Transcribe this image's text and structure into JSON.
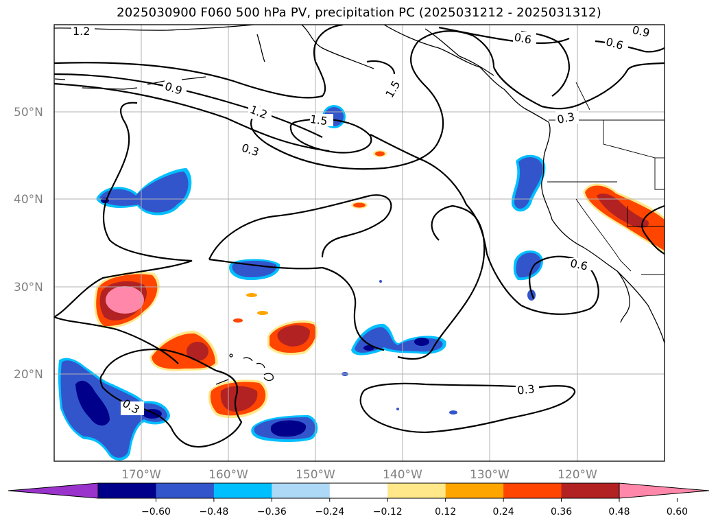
{
  "title": "2025030900 F060 500 hPa PV, precipitation PC (2025031212 - 2025031312)",
  "latitude_labels": [
    "50°N",
    "40°N",
    "30°N",
    "20°N"
  ],
  "longitude_labels": [
    "170°W",
    "160°W",
    "150°W",
    "140°W",
    "130°W",
    "120°W"
  ],
  "contour_labels": [
    "1.2",
    "0.9",
    "1.2",
    "0.3",
    "1.5",
    "1.5",
    "0.6",
    "0.9",
    "0.6",
    "0.3",
    "0.6",
    "0.3",
    "0.3"
  ],
  "colorbar": {
    "ticks": [
      "−0.60",
      "−0.48",
      "−0.36",
      "−0.24",
      "−0.12",
      "0.12",
      "0.24",
      "0.36",
      "0.48",
      "0.60"
    ],
    "colors": [
      "#9933cc",
      "#00008b",
      "#3355cc",
      "#00bfff",
      "#add8f6",
      "#ffffff",
      "#ffe88a",
      "#ffa500",
      "#ff4500",
      "#b22222",
      "#ff88aa"
    ]
  },
  "palette": {
    "negative_strong": "#00008b",
    "negative_mid": "#3355cc",
    "negative_light": "#00bfff",
    "positive_light": "#ffe88a",
    "positive_mid": "#ff4500",
    "positive_strong": "#b22222",
    "positive_max": "#ff88aa"
  }
}
